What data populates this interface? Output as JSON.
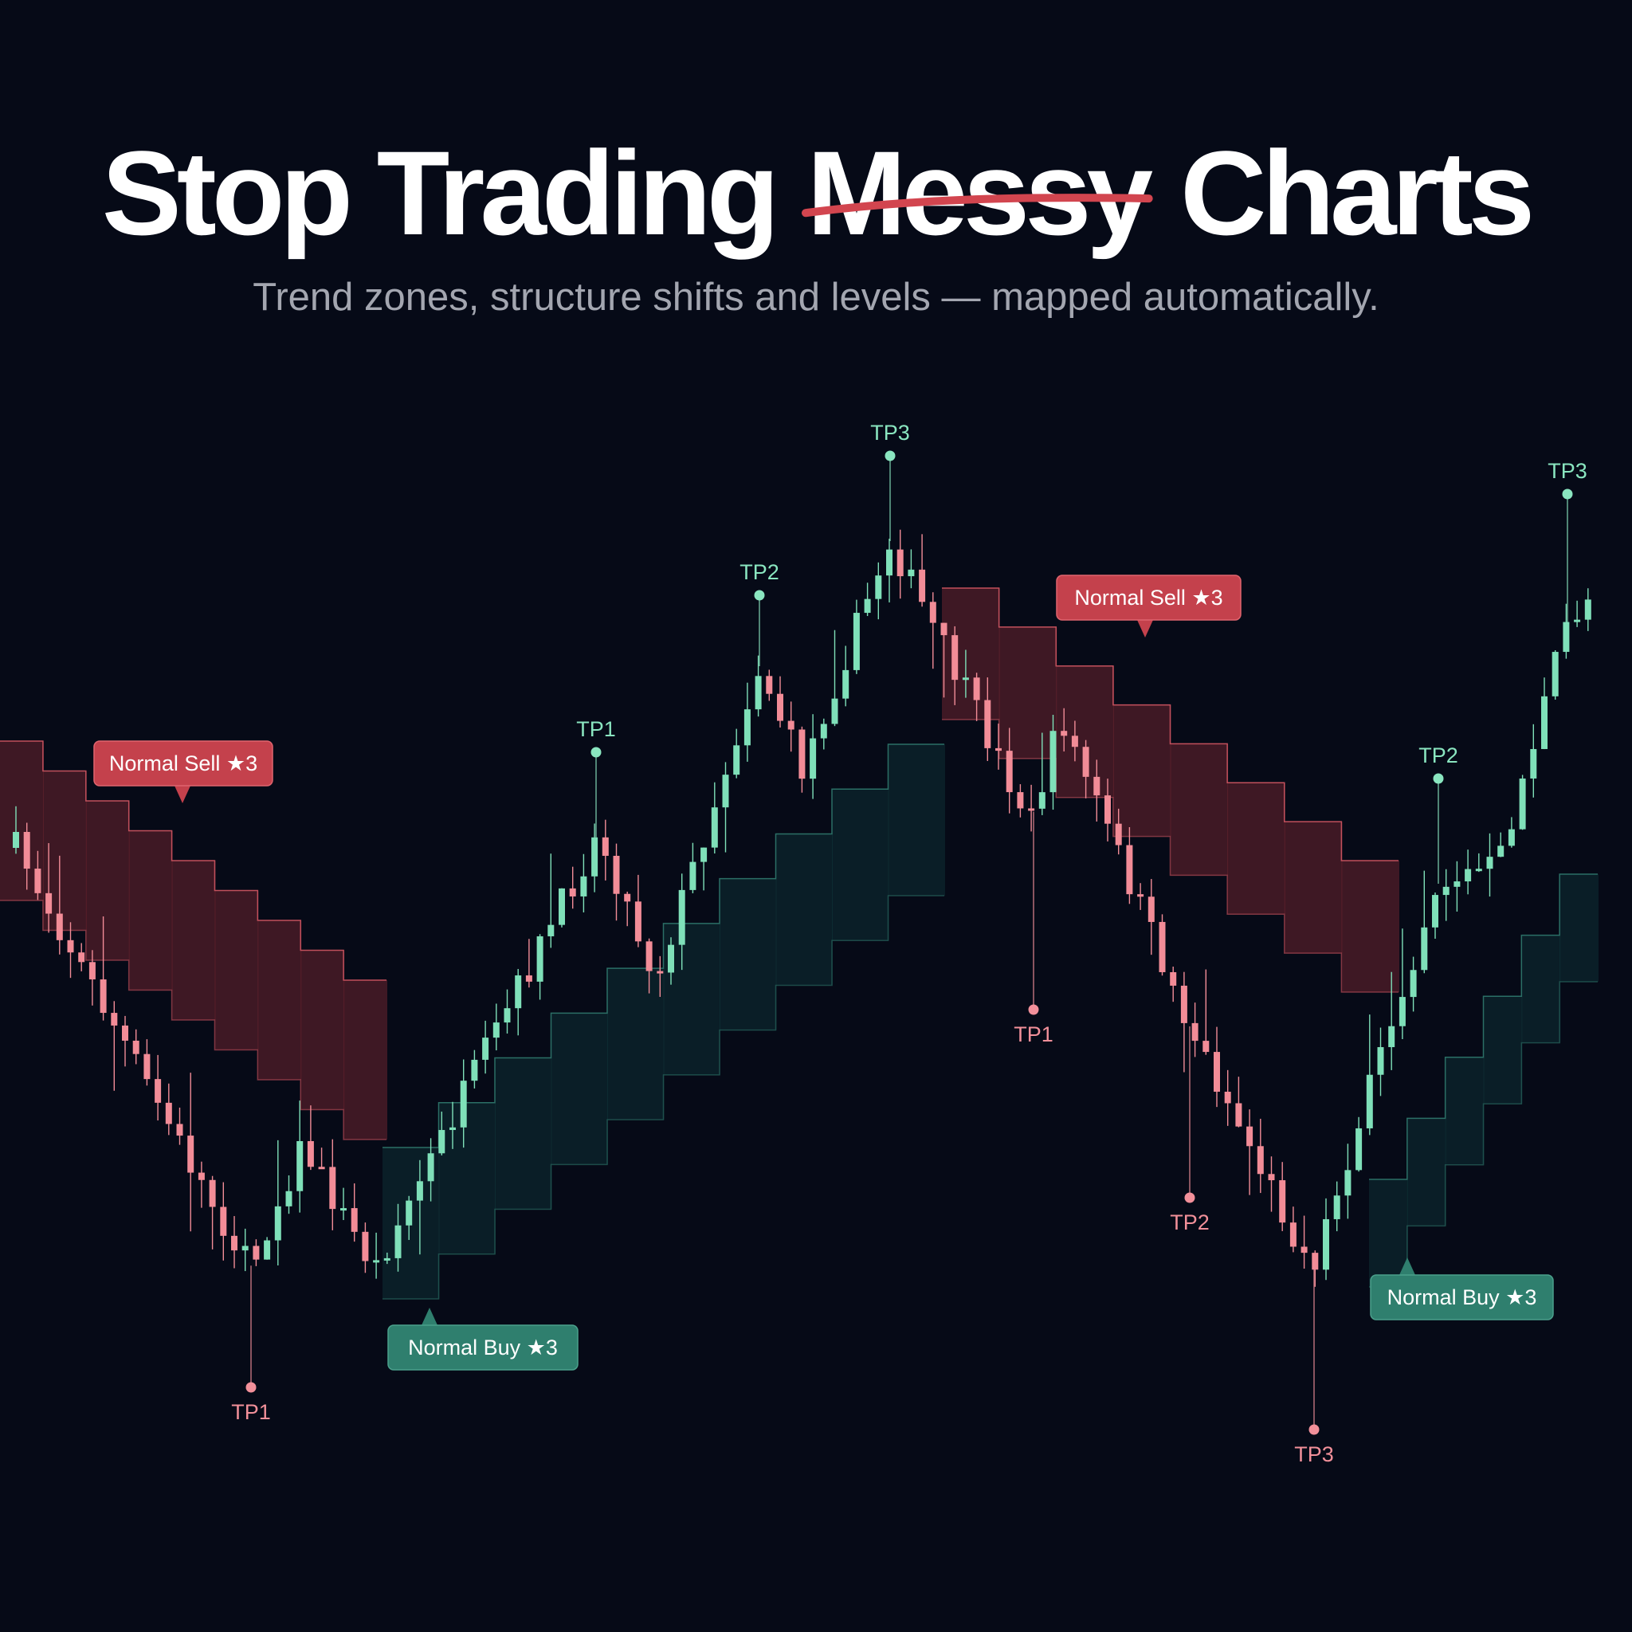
{
  "header": {
    "title": [
      "Stop Trading",
      "Messy",
      "Charts"
    ],
    "subtitle": "Trend zones, structure shifts and levels — mapped automatically."
  },
  "signals": [
    {
      "label": "Normal Sell ★3"
    },
    {
      "label": "Normal Buy ★3"
    },
    {
      "label": "Normal Sell ★3"
    },
    {
      "label": "Normal Buy ★3"
    }
  ],
  "targets": [
    {
      "label": "TP1"
    },
    {
      "label": "TP1"
    },
    {
      "label": "TP2"
    },
    {
      "label": "TP3"
    },
    {
      "label": "TP1"
    },
    {
      "label": "TP2"
    },
    {
      "label": "TP3"
    },
    {
      "label": "TP2"
    },
    {
      "label": "TP3"
    }
  ]
}
